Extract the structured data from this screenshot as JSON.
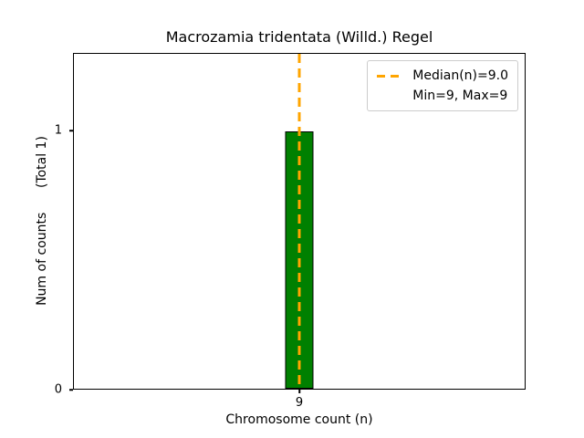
{
  "chart_data": {
    "type": "bar",
    "title": "Macrozamia tridentata (Willd.) Regel",
    "xlabel": "Chromosome count (n)",
    "ylabel": "Num of counts      (Total 1)",
    "categories": [
      9
    ],
    "values": [
      1
    ],
    "total_counts": 1,
    "ylim": [
      0,
      1.3
    ],
    "yticks": [
      0,
      1
    ],
    "xticks": [
      9
    ],
    "grid": false,
    "bar_color": "#008000",
    "bar_edge_color": "#000000",
    "median_line": {
      "x": 9,
      "color": "#FFA500",
      "style": "dashed",
      "label": "Median(n)=9.0"
    },
    "stats": {
      "median": 9.0,
      "min": 9,
      "max": 9
    },
    "legend": {
      "position": "upper right",
      "entries": [
        {
          "label": "Median(n)=9.0",
          "sample": "dashed-orange-line"
        },
        {
          "label": "Min=9, Max=9",
          "sample": "none"
        }
      ]
    }
  }
}
